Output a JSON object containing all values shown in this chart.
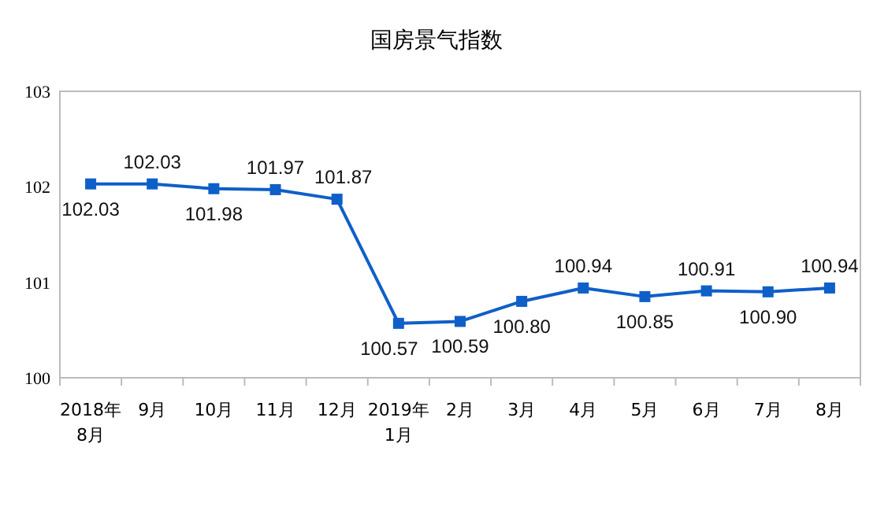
{
  "chart_data": {
    "type": "line",
    "title": "国房景气指数",
    "categories": [
      "2018年\n8月",
      "9月",
      "10月",
      "11月",
      "12月",
      "2019年\n1月",
      "2月",
      "3月",
      "4月",
      "5月",
      "6月",
      "7月",
      "8月"
    ],
    "series": [
      {
        "color": "#0f5fc8",
        "values": [
          102.03,
          102.03,
          101.98,
          101.97,
          101.87,
          100.57,
          100.59,
          100.8,
          100.94,
          100.85,
          100.91,
          100.9,
          100.94
        ]
      }
    ],
    "value_labels": [
      "102.03",
      "102.03",
      "101.98",
      "101.97",
      "101.87",
      "100.57",
      "100.59",
      "100.80",
      "100.94",
      "100.85",
      "100.91",
      "100.90",
      "100.94"
    ],
    "ylim": [
      100,
      103
    ],
    "yticks": [
      100,
      101,
      102,
      103
    ],
    "grid": false,
    "marker": "square",
    "line_style": "solid"
  }
}
